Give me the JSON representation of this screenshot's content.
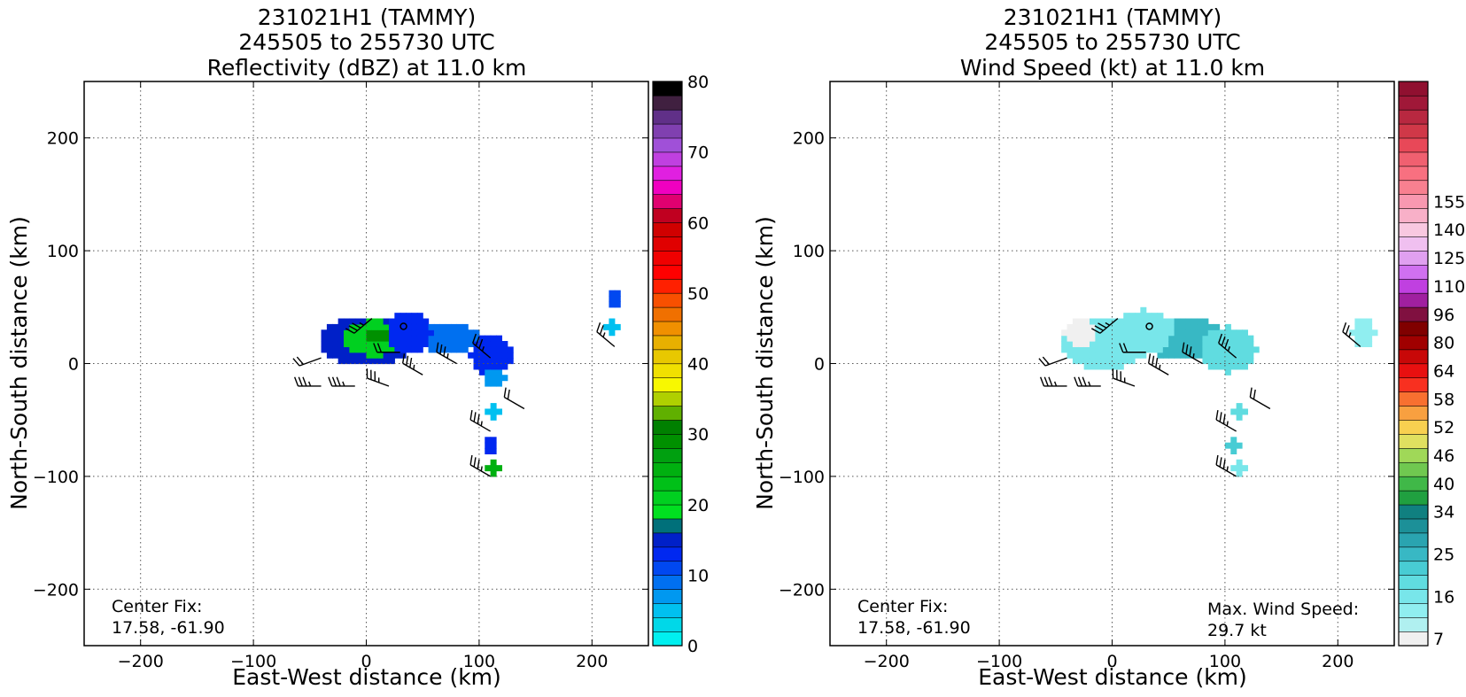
{
  "chart_data": [
    {
      "type": "heatmap",
      "title_lines": [
        "231021H1 (TAMMY)",
        "245505 to 255730 UTC",
        "Reflectivity (dBZ) at 11.0 km"
      ],
      "xlabel": "East-West distance (km)",
      "ylabel": "North-South distance (km)",
      "xlim": [
        -250,
        250
      ],
      "ylim": [
        -250,
        250
      ],
      "xticks": [
        -200,
        -100,
        0,
        100,
        200
      ],
      "yticks": [
        -200,
        -100,
        0,
        100,
        200
      ],
      "xtick_labels": [
        "−200",
        "−100",
        "0",
        "100",
        "200"
      ],
      "ytick_labels": [
        "−200",
        "−100",
        "0",
        "100",
        "200"
      ],
      "grid": true,
      "annotation": {
        "line1": "Center Fix:",
        "line2": "17.58, -61.90"
      },
      "colorbar": {
        "min": 0,
        "max": 80,
        "ticks": [
          0,
          10,
          20,
          30,
          40,
          50,
          60,
          70,
          80
        ],
        "tick_labels": [
          "0",
          "10",
          "20",
          "30",
          "40",
          "50",
          "60",
          "70",
          "80"
        ],
        "colors": [
          "#00f0f0",
          "#00d8e8",
          "#00c0f0",
          "#0098f0",
          "#0070f0",
          "#0048f0",
          "#0028f0",
          "#0020c8",
          "#00707a",
          "#00e020",
          "#00d020",
          "#00c018",
          "#00b010",
          "#00a010",
          "#009000",
          "#008000",
          "#60b000",
          "#b0d000",
          "#f8f800",
          "#f0e000",
          "#e8c800",
          "#e8b000",
          "#f09000",
          "#f07000",
          "#f85000",
          "#ff2000",
          "#ff0000",
          "#f00000",
          "#e00000",
          "#d00000",
          "#c00020",
          "#e00070",
          "#f000c0",
          "#e020e0",
          "#c040e0",
          "#a050d8",
          "#8040b0",
          "#603088",
          "#402040",
          "#000000"
        ]
      },
      "regions_dBZ": [
        {
          "cx": -3,
          "cy": 18,
          "rx": 42,
          "ry": 22,
          "dBZ": 14
        },
        {
          "cx": 5,
          "cy": 20,
          "rx": 30,
          "ry": 16,
          "dBZ": 21
        },
        {
          "cx": 8,
          "cy": 22,
          "rx": 10,
          "ry": 6,
          "dBZ": 28
        },
        {
          "cx": 35,
          "cy": 25,
          "rx": 20,
          "ry": 18,
          "dBZ": 12
        },
        {
          "cx": 70,
          "cy": 20,
          "rx": 28,
          "ry": 14,
          "dBZ": 8
        },
        {
          "cx": 108,
          "cy": 5,
          "rx": 18,
          "ry": 20,
          "dBZ": 13
        },
        {
          "cx": 112,
          "cy": -15,
          "rx": 10,
          "ry": 8,
          "dBZ": 6
        },
        {
          "cx": 110,
          "cy": -45,
          "rx": 7,
          "ry": 5,
          "dBZ": 5
        },
        {
          "cx": 108,
          "cy": -75,
          "rx": 6,
          "ry": 7,
          "dBZ": 12
        },
        {
          "cx": 110,
          "cy": -95,
          "rx": 6,
          "ry": 8,
          "dBZ": 25
        },
        {
          "cx": 218,
          "cy": 55,
          "rx": 5,
          "ry": 8,
          "dBZ": 11
        },
        {
          "cx": 215,
          "cy": 30,
          "rx": 6,
          "ry": 5,
          "dBZ": 4
        }
      ],
      "wind_barbs": [
        {
          "x": 5,
          "y": 40,
          "speed_kt": 25,
          "dir_deg": 230
        },
        {
          "x": -40,
          "y": 5,
          "speed_kt": 20,
          "dir_deg": 250
        },
        {
          "x": -40,
          "y": -20,
          "speed_kt": 25,
          "dir_deg": 270
        },
        {
          "x": -10,
          "y": -20,
          "speed_kt": 25,
          "dir_deg": 270
        },
        {
          "x": 20,
          "y": -20,
          "speed_kt": 25,
          "dir_deg": 290
        },
        {
          "x": 50,
          "y": -10,
          "speed_kt": 25,
          "dir_deg": 300
        },
        {
          "x": 80,
          "y": 0,
          "speed_kt": 25,
          "dir_deg": 300
        },
        {
          "x": 110,
          "y": 5,
          "speed_kt": 25,
          "dir_deg": 310
        },
        {
          "x": 140,
          "y": -40,
          "speed_kt": 20,
          "dir_deg": 300
        },
        {
          "x": 110,
          "y": -60,
          "speed_kt": 25,
          "dir_deg": 300
        },
        {
          "x": 110,
          "y": -100,
          "speed_kt": 25,
          "dir_deg": 300
        },
        {
          "x": 30,
          "y": 10,
          "speed_kt": 20,
          "dir_deg": 270
        },
        {
          "x": 220,
          "y": 15,
          "speed_kt": 15,
          "dir_deg": 310
        }
      ],
      "center_marker": {
        "x": 33,
        "y": 33
      }
    },
    {
      "type": "heatmap",
      "title_lines": [
        "231021H1 (TAMMY)",
        "245505 to 255730 UTC",
        "Wind Speed (kt) at 11.0 km"
      ],
      "xlabel": "East-West distance (km)",
      "ylabel": "North-South distance (km)",
      "xlim": [
        -250,
        250
      ],
      "ylim": [
        -250,
        250
      ],
      "xticks": [
        -200,
        -100,
        0,
        100,
        200
      ],
      "yticks": [
        -200,
        -100,
        0,
        100,
        200
      ],
      "xtick_labels": [
        "−200",
        "−100",
        "0",
        "100",
        "200"
      ],
      "ytick_labels": [
        "−200",
        "−100",
        "0",
        "100",
        "200"
      ],
      "grid": true,
      "annotation": {
        "line1": "Center Fix:",
        "line2": "17.58, -61.90"
      },
      "max_wind": {
        "line1": "Max. Wind Speed:",
        "line2": "29.7 kt"
      },
      "colorbar": {
        "min": 7,
        "max": 160,
        "tick_labels": [
          "7",
          "16",
          "25",
          "34",
          "40",
          "46",
          "52",
          "58",
          "64",
          "80",
          "96",
          "110",
          "125",
          "140",
          "155"
        ],
        "tick_bins": [
          0,
          3,
          6,
          9,
          11,
          13,
          15,
          17,
          19,
          21,
          23,
          25,
          27,
          29,
          31
        ],
        "colors": [
          "#f0f0f0",
          "#b0f0f0",
          "#90eef0",
          "#78e6ea",
          "#60dce0",
          "#48ccd4",
          "#38b8c4",
          "#2aa4b0",
          "#1c9098",
          "#108080",
          "#20a040",
          "#40b848",
          "#70c850",
          "#a0d858",
          "#e0e060",
          "#f8d050",
          "#f8a040",
          "#f87030",
          "#f83020",
          "#e81010",
          "#c80808",
          "#a00000",
          "#800000",
          "#801040",
          "#a020a0",
          "#c040e0",
          "#d070f0",
          "#e0a0f0",
          "#f0c0f0",
          "#f8c8e0",
          "#f8b0c8",
          "#f898b0",
          "#f88090",
          "#f87080",
          "#f06070",
          "#e84858",
          "#d03848",
          "#b82840",
          "#a01838",
          "#901030"
        ]
      },
      "regions_kt": [
        {
          "cx": -10,
          "cy": 15,
          "rx": 38,
          "ry": 22,
          "kt": 18
        },
        {
          "cx": 25,
          "cy": 25,
          "rx": 30,
          "ry": 20,
          "kt": 16
        },
        {
          "cx": 60,
          "cy": 20,
          "rx": 40,
          "ry": 18,
          "kt": 25
        },
        {
          "cx": 100,
          "cy": 10,
          "rx": 25,
          "ry": 20,
          "kt": 21
        },
        {
          "cx": -30,
          "cy": 25,
          "rx": 15,
          "ry": 12,
          "kt": 8
        },
        {
          "cx": 110,
          "cy": -45,
          "rx": 7,
          "ry": 5,
          "kt": 20
        },
        {
          "cx": 105,
          "cy": -75,
          "rx": 7,
          "ry": 7,
          "kt": 22
        },
        {
          "cx": 110,
          "cy": -95,
          "rx": 5,
          "ry": 7,
          "kt": 18
        },
        {
          "cx": 220,
          "cy": 25,
          "rx": 10,
          "ry": 12,
          "kt": 14
        }
      ],
      "wind_barbs": [
        {
          "x": 5,
          "y": 40,
          "speed_kt": 25,
          "dir_deg": 230
        },
        {
          "x": -40,
          "y": 5,
          "speed_kt": 20,
          "dir_deg": 250
        },
        {
          "x": -40,
          "y": -20,
          "speed_kt": 25,
          "dir_deg": 270
        },
        {
          "x": -10,
          "y": -20,
          "speed_kt": 25,
          "dir_deg": 270
        },
        {
          "x": 20,
          "y": -20,
          "speed_kt": 25,
          "dir_deg": 290
        },
        {
          "x": 50,
          "y": -10,
          "speed_kt": 25,
          "dir_deg": 300
        },
        {
          "x": 80,
          "y": 0,
          "speed_kt": 25,
          "dir_deg": 300
        },
        {
          "x": 110,
          "y": 5,
          "speed_kt": 25,
          "dir_deg": 310
        },
        {
          "x": 140,
          "y": -40,
          "speed_kt": 20,
          "dir_deg": 300
        },
        {
          "x": 110,
          "y": -60,
          "speed_kt": 25,
          "dir_deg": 300
        },
        {
          "x": 110,
          "y": -100,
          "speed_kt": 25,
          "dir_deg": 300
        },
        {
          "x": 30,
          "y": 10,
          "speed_kt": 20,
          "dir_deg": 270
        },
        {
          "x": 220,
          "y": 15,
          "speed_kt": 15,
          "dir_deg": 310
        }
      ],
      "center_marker": {
        "x": 33,
        "y": 33
      }
    }
  ]
}
